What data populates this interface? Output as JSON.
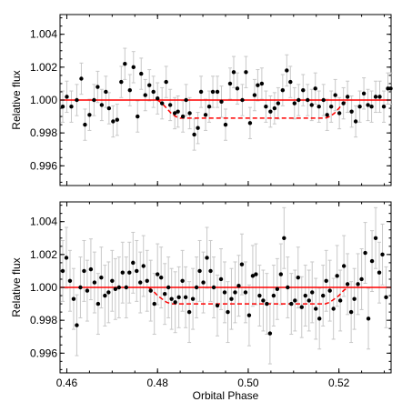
{
  "colors": {
    "points": "#000000",
    "errorbars": "#c8c8c8",
    "model_flat": "#ff0000",
    "model_transit": "#ff0000"
  },
  "chart_data": [
    {
      "type": "scatter",
      "panel": "top",
      "xlabel": "",
      "ylabel": "Relative flux",
      "xlim": [
        0.4585,
        0.5315
      ],
      "ylim": [
        0.9948,
        1.0052
      ],
      "xticks": [
        0.46,
        0.48,
        0.5,
        0.52
      ],
      "xtick_labels": [],
      "yticks": [
        0.996,
        0.998,
        1.0,
        1.002,
        1.004
      ],
      "ytick_labels": [
        "0.996",
        "0.998",
        "1.000",
        "1.002",
        "1.004"
      ],
      "errorbar_halfwidth": 0.00095,
      "series": [
        {
          "x": [
            0.4591,
            0.46,
            0.461,
            0.4622,
            0.4632,
            0.464,
            0.465,
            0.466,
            0.4668,
            0.4677,
            0.4686,
            0.4693,
            0.4702,
            0.4711,
            0.472,
            0.4728,
            0.4739,
            0.4747,
            0.4756,
            0.4764,
            0.4773,
            0.4782,
            0.4791,
            0.48,
            0.481,
            0.4819,
            0.4828,
            0.4838,
            0.4845,
            0.4856,
            0.4863,
            0.4871,
            0.4881,
            0.4889,
            0.4896,
            0.4906,
            0.4914,
            0.4922,
            0.4932,
            0.4941,
            0.495,
            0.496,
            0.4968,
            0.4976,
            0.4987,
            0.4995,
            0.5004,
            0.5014,
            0.5021,
            0.503,
            0.5039,
            0.5049,
            0.5058,
            0.5066,
            0.5076,
            0.5085,
            0.5093,
            0.5102,
            0.5111,
            0.5121,
            0.5131,
            0.514,
            0.5148,
            0.5156,
            0.5166,
            0.5174,
            0.5183,
            0.5192,
            0.5201,
            0.521,
            0.5219,
            0.5228,
            0.5237,
            0.5246,
            0.5255,
            0.5264,
            0.5272,
            0.5281,
            0.529,
            0.5299,
            0.5308,
            0.5314
          ],
          "y": [
            0.9996,
            1.0002,
            0.9996,
            1.0,
            1.0013,
            0.9985,
            0.9991,
            1.0,
            1.0008,
            0.9997,
            1.0005,
            0.9995,
            0.9987,
            0.9988,
            1.0011,
            1.0022,
            1.0006,
            1.002,
            0.999,
            1.0016,
            1.0003,
            1.0009,
            1.0005,
            1.0001,
            0.9998,
            1.0011,
            0.9997,
            0.9992,
            0.9993,
            0.999,
            1.0,
            0.9992,
            0.9979,
            0.9983,
            1.0005,
            0.9991,
            0.9996,
            1.0005,
            1.0005,
            0.9999,
            0.9985,
            1.001,
            1.0017,
            1.0007,
            1.0,
            1.0017,
            0.9986,
            1.0003,
            1.0009,
            1.001,
            0.9996,
            0.9993,
            0.9995,
            0.9998,
            1.0006,
            1.0018,
            1.0011,
            0.9998,
            1.0,
            1.0006,
            1.0,
            0.9997,
            1.0007,
            0.9996,
            1.0,
            0.9991,
            0.9996,
            1.0003,
            0.9992,
            0.9998,
            1.0002,
            0.9993,
            0.9987,
            0.9996,
            1.0004,
            0.9997,
            0.9996,
            1.0002,
            1.0002,
            0.9996,
            1.0007,
            1.0007
          ]
        }
      ],
      "model_flat": 1.0,
      "model_transit": {
        "x": [
          0.48,
          0.481,
          0.482,
          0.483,
          0.484,
          0.485,
          0.487,
          0.49,
          0.495,
          0.5,
          0.505,
          0.51,
          0.515,
          0.517,
          0.518,
          0.519,
          0.52,
          0.521,
          0.522
        ],
        "y": [
          1.0,
          0.9998,
          0.9995,
          0.9992,
          0.999,
          0.9989,
          0.9989,
          0.9989,
          0.9989,
          0.9989,
          0.9989,
          0.9989,
          0.9989,
          0.9989,
          0.999,
          0.9992,
          0.9995,
          0.9998,
          1.0
        ]
      }
    },
    {
      "type": "scatter",
      "panel": "bottom",
      "xlabel": "Orbital Phase",
      "ylabel": "Relative flux",
      "xlim": [
        0.4585,
        0.5315
      ],
      "ylim": [
        0.9948,
        1.0052
      ],
      "xticks": [
        0.46,
        0.48,
        0.5,
        0.52
      ],
      "xtick_labels": [
        "0.46",
        "0.48",
        "0.50",
        "0.52"
      ],
      "yticks": [
        0.996,
        0.998,
        1.0,
        1.002,
        1.004
      ],
      "ytick_labels": [
        "0.996",
        "0.998",
        "1.000",
        "1.002",
        "1.004"
      ],
      "errorbar_halfwidth": 0.00185,
      "series": [
        {
          "x": [
            0.4591,
            0.4599,
            0.4607,
            0.4615,
            0.4622,
            0.463,
            0.4638,
            0.4645,
            0.4653,
            0.4661,
            0.4669,
            0.4676,
            0.4684,
            0.4692,
            0.47,
            0.4707,
            0.4715,
            0.4723,
            0.4731,
            0.4738,
            0.4746,
            0.4754,
            0.4762,
            0.4769,
            0.4777,
            0.4785,
            0.4793,
            0.48,
            0.4808,
            0.4816,
            0.4824,
            0.4831,
            0.4839,
            0.4847,
            0.4855,
            0.4862,
            0.487,
            0.4878,
            0.4886,
            0.4893,
            0.4901,
            0.4909,
            0.4917,
            0.4924,
            0.4932,
            0.494,
            0.4948,
            0.4955,
            0.4963,
            0.4971,
            0.4979,
            0.4986,
            0.4994,
            0.5002,
            0.501,
            0.5017,
            0.5025,
            0.5033,
            0.5041,
            0.5048,
            0.5056,
            0.5064,
            0.5072,
            0.5079,
            0.5087,
            0.5095,
            0.5103,
            0.511,
            0.5118,
            0.5126,
            0.5134,
            0.5141,
            0.5149,
            0.5157,
            0.5165,
            0.5172,
            0.518,
            0.5188,
            0.5196,
            0.5203,
            0.5211,
            0.5219,
            0.5227,
            0.5234,
            0.5242,
            0.525,
            0.5258,
            0.5265,
            0.5273,
            0.5281,
            0.5289,
            0.5296,
            0.5304
          ],
          "y": [
            1.001,
            1.0018,
            1.0004,
            0.9993,
            0.9977,
            1.0,
            1.001,
            0.9998,
            1.0011,
            1.0003,
            0.999,
            1.0006,
            0.9995,
            0.9997,
            1.0004,
            0.9999,
            1.0,
            1.0009,
            1.0,
            1.0009,
            1.0015,
            1.001,
            1.0003,
            1.0013,
            1.0004,
            0.9998,
            0.999,
            1.0008,
            1.0006,
            0.9996,
            1.0,
            0.9993,
            0.9991,
            0.9994,
            1.0004,
            0.9994,
            0.9985,
            0.9993,
            1.0,
            1.001,
            1.0003,
            1.0018,
            1.001,
            1.0,
            0.9989,
            1.0005,
            0.9997,
            0.9985,
            0.9993,
            0.9997,
            1.0001,
            1.0014,
            0.9997,
            0.9983,
            1.0007,
            1.0008,
            0.9995,
            0.9992,
            0.999,
            0.9972,
            0.9995,
            0.9999,
            1.0008,
            1.003,
            1.0,
            0.999,
            0.9992,
            1.0006,
            0.9988,
            0.9995,
            0.9992,
            0.9997,
            0.9987,
            0.9981,
            0.9995,
            1.0004,
            0.9998,
            0.9987,
            1.0007,
            0.9992,
            1.0013,
            1.0002,
            0.9985,
            0.9993,
            1.0002,
            1.0005,
            1.0021,
            0.9981,
            1.0016,
            1.003,
            1.0009,
            1.002,
            0.9994
          ]
        }
      ],
      "model_flat": 1.0,
      "model_transit": {
        "x": [
          0.478,
          0.479,
          0.48,
          0.481,
          0.482,
          0.483,
          0.485,
          0.49,
          0.495,
          0.5,
          0.505,
          0.51,
          0.515,
          0.517,
          0.518,
          0.519,
          0.52,
          0.521,
          0.522
        ],
        "y": [
          1.0,
          0.9998,
          0.9995,
          0.9993,
          0.9991,
          0.999,
          0.999,
          0.999,
          0.999,
          0.999,
          0.999,
          0.999,
          0.999,
          0.999,
          0.9991,
          0.9993,
          0.9995,
          0.9998,
          1.0
        ]
      }
    }
  ]
}
